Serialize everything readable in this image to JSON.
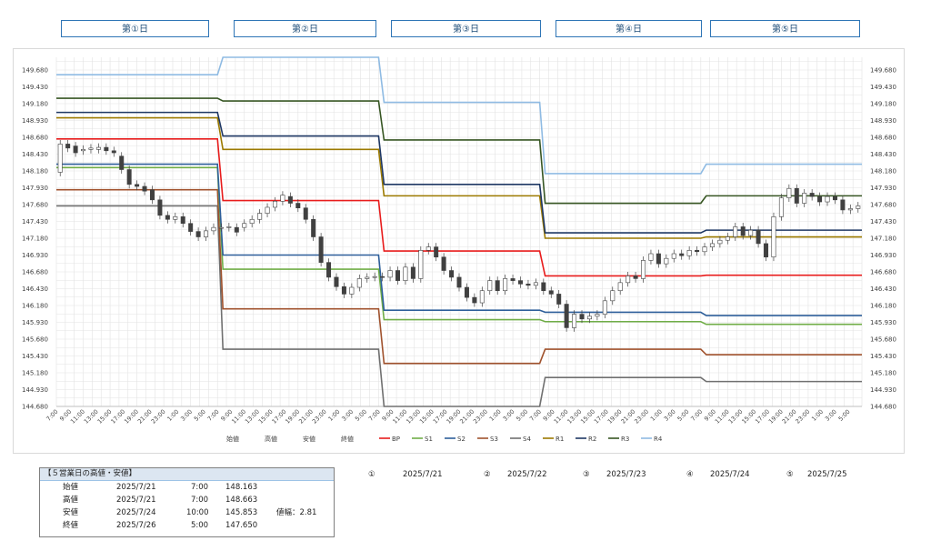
{
  "day_labels": [
    "第①日",
    "第②日",
    "第③日",
    "第④日",
    "第⑤日"
  ],
  "colors": {
    "BP": "#e81c1c",
    "S1": "#70ad47",
    "S2": "#2e5f9a",
    "S3": "#a0522d",
    "S4": "#707070",
    "R1": "#9c7a00",
    "R2": "#1f3864",
    "R3": "#375623",
    "R4": "#8fbbe3",
    "candle_up": "#ffffff",
    "candle_down": "#404040",
    "grid": "#e3e3e3",
    "day_box_border": "#2e75b6"
  },
  "chart_data": {
    "type": "line",
    "y_ticks": [
      "149.680",
      "149.430",
      "149.180",
      "148.930",
      "148.680",
      "148.430",
      "148.180",
      "147.930",
      "147.680",
      "147.430",
      "147.180",
      "146.930",
      "146.680",
      "146.430",
      "146.180",
      "145.930",
      "145.680",
      "145.430",
      "145.180",
      "144.930",
      "144.680"
    ],
    "ylim": [
      144.68,
      149.68
    ],
    "x_tick_labels": [
      "7:00",
      "9:00",
      "11:00",
      "13:00",
      "15:00",
      "17:00",
      "19:00",
      "21:00",
      "23:00",
      "1:00",
      "3:00",
      "5:00"
    ],
    "legend": [
      "始値",
      "高値",
      "安値",
      "終値",
      "BP",
      "S1",
      "S2",
      "S3",
      "S4",
      "R1",
      "R2",
      "R3",
      "R4"
    ],
    "pivot_levels": {
      "BP": [
        148.655,
        147.74,
        146.99,
        146.62,
        146.63
      ],
      "S1": [
        148.23,
        146.72,
        145.97,
        145.94,
        145.9
      ],
      "S2": [
        148.28,
        146.93,
        146.11,
        146.08,
        146.03
      ],
      "S3": [
        147.9,
        146.13,
        145.32,
        145.53,
        145.45
      ],
      "S4": [
        147.66,
        145.53,
        144.68,
        145.11,
        145.05
      ],
      "R1": [
        148.97,
        148.5,
        147.81,
        147.18,
        147.2
      ],
      "R2": [
        149.05,
        148.7,
        147.98,
        147.26,
        147.3
      ],
      "R3": [
        149.26,
        149.22,
        148.64,
        147.7,
        147.81
      ],
      "R4": [
        149.61,
        150.0,
        149.2,
        148.14,
        148.28
      ]
    },
    "candles_open_close": [
      [
        148.16,
        148.58
      ],
      [
        148.58,
        148.52
      ],
      [
        148.55,
        148.45
      ],
      [
        148.48,
        148.5
      ],
      [
        148.5,
        148.52
      ],
      [
        148.5,
        148.53
      ],
      [
        148.53,
        148.48
      ],
      [
        148.48,
        148.45
      ],
      [
        148.4,
        148.2
      ],
      [
        148.2,
        147.98
      ],
      [
        147.98,
        147.95
      ],
      [
        147.95,
        147.88
      ],
      [
        147.9,
        147.75
      ],
      [
        147.75,
        147.52
      ],
      [
        147.52,
        147.46
      ],
      [
        147.46,
        147.5
      ],
      [
        147.5,
        147.4
      ],
      [
        147.4,
        147.28
      ],
      [
        147.28,
        147.2
      ],
      [
        147.2,
        147.29
      ],
      [
        147.29,
        147.34
      ],
      [
        147.34,
        147.34
      ],
      [
        147.34,
        147.35
      ],
      [
        147.34,
        147.27
      ],
      [
        147.34,
        147.4
      ],
      [
        147.4,
        147.46
      ],
      [
        147.46,
        147.55
      ],
      [
        147.55,
        147.64
      ],
      [
        147.64,
        147.73
      ],
      [
        147.73,
        147.82
      ],
      [
        147.8,
        147.7
      ],
      [
        147.7,
        147.63
      ],
      [
        147.63,
        147.46
      ],
      [
        147.46,
        147.2
      ],
      [
        147.2,
        146.82
      ],
      [
        146.82,
        146.6
      ],
      [
        146.6,
        146.46
      ],
      [
        146.46,
        146.35
      ],
      [
        146.35,
        146.45
      ],
      [
        146.45,
        146.58
      ],
      [
        146.58,
        146.6
      ],
      [
        146.6,
        146.61
      ],
      [
        146.61,
        146.6
      ],
      [
        146.6,
        146.7
      ],
      [
        146.7,
        146.55
      ],
      [
        146.55,
        146.75
      ],
      [
        146.75,
        146.58
      ],
      [
        146.58,
        147.0
      ],
      [
        147.0,
        147.05
      ],
      [
        147.05,
        146.9
      ],
      [
        146.9,
        146.7
      ],
      [
        146.7,
        146.6
      ],
      [
        146.6,
        146.45
      ],
      [
        146.45,
        146.3
      ],
      [
        146.3,
        146.22
      ],
      [
        146.22,
        146.4
      ],
      [
        146.4,
        146.55
      ],
      [
        146.55,
        146.4
      ],
      [
        146.4,
        146.58
      ],
      [
        146.58,
        146.55
      ],
      [
        146.55,
        146.5
      ],
      [
        146.5,
        146.48
      ],
      [
        146.48,
        146.52
      ],
      [
        146.52,
        146.4
      ],
      [
        146.4,
        146.35
      ],
      [
        146.35,
        146.2
      ],
      [
        146.2,
        145.85
      ],
      [
        145.85,
        146.05
      ],
      [
        146.05,
        145.98
      ],
      [
        145.98,
        146.02
      ],
      [
        146.02,
        146.05
      ],
      [
        146.05,
        146.25
      ],
      [
        146.25,
        146.4
      ],
      [
        146.4,
        146.52
      ],
      [
        146.52,
        146.62
      ],
      [
        146.62,
        146.58
      ],
      [
        146.58,
        146.85
      ],
      [
        146.85,
        146.95
      ],
      [
        146.95,
        146.8
      ],
      [
        146.8,
        146.88
      ],
      [
        146.88,
        146.95
      ],
      [
        146.95,
        146.92
      ],
      [
        146.92,
        147.0
      ],
      [
        147.0,
        146.98
      ],
      [
        146.98,
        147.05
      ],
      [
        147.05,
        147.1
      ],
      [
        147.1,
        147.15
      ],
      [
        147.15,
        147.2
      ],
      [
        147.2,
        147.35
      ],
      [
        147.35,
        147.22
      ],
      [
        147.22,
        147.3
      ],
      [
        147.3,
        147.1
      ],
      [
        147.1,
        146.9
      ],
      [
        146.9,
        147.5
      ],
      [
        147.5,
        147.78
      ],
      [
        147.78,
        147.92
      ],
      [
        147.92,
        147.7
      ],
      [
        147.7,
        147.85
      ],
      [
        147.85,
        147.8
      ],
      [
        147.8,
        147.72
      ],
      [
        147.72,
        147.8
      ],
      [
        147.8,
        147.75
      ],
      [
        147.75,
        147.6
      ],
      [
        147.6,
        147.62
      ],
      [
        147.62,
        147.66
      ]
    ],
    "title": "",
    "xlabel": "",
    "ylabel": ""
  },
  "summary": {
    "title": "【５営業日の高値・安値】",
    "rows": [
      {
        "label": "始値",
        "date": "2025/7/21",
        "time": "7:00",
        "value": "148.163",
        "extra": ""
      },
      {
        "label": "高値",
        "date": "2025/7/21",
        "time": "7:00",
        "value": "148.663",
        "extra": ""
      },
      {
        "label": "安値",
        "date": "2025/7/24",
        "time": "10:00",
        "value": "145.853",
        "extra": "値幅：2.81"
      },
      {
        "label": "終値",
        "date": "2025/7/26",
        "time": "5:00",
        "value": "147.650",
        "extra": ""
      }
    ]
  },
  "day_dates": [
    {
      "num": "①",
      "date": "2025/7/21"
    },
    {
      "num": "②",
      "date": "2025/7/22"
    },
    {
      "num": "③",
      "date": "2025/7/23"
    },
    {
      "num": "④",
      "date": "2025/7/24"
    },
    {
      "num": "⑤",
      "date": "2025/7/25"
    }
  ]
}
